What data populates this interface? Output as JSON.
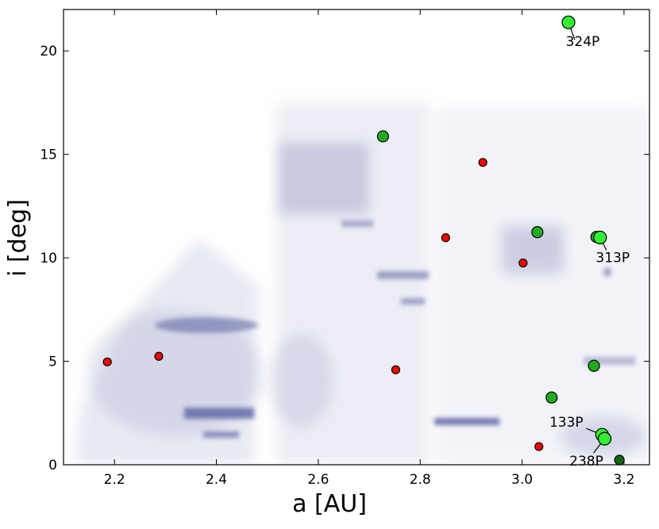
{
  "chart_data": {
    "type": "scatter",
    "xlabel": "a [AU]",
    "ylabel": "i [deg]",
    "xlim": [
      2.1,
      3.25
    ],
    "ylim": [
      0,
      22
    ],
    "xticks": [
      2.2,
      2.4,
      2.6,
      2.8,
      {
        "value": 3,
        "label": "3.0"
      },
      3.2
    ],
    "yticks": [
      0,
      5,
      10,
      15,
      20
    ],
    "series": [
      {
        "color": "#ff0000",
        "x": [
          2.186,
          2.287,
          2.752,
          2.85,
          2.923,
          3.002,
          3.033
        ],
        "values": [
          4.97,
          5.24,
          4.59,
          10.97,
          14.61,
          9.75,
          0.88
        ]
      },
      {
        "color": "#22aa22",
        "x": [
          2.727,
          3.03,
          3.146,
          3.141,
          3.058
        ],
        "values": [
          15.87,
          11.24,
          11.01,
          4.78,
          3.25
        ]
      },
      {
        "color": "#33ee33",
        "x": [
          3.091,
          3.153,
          3.157,
          3.162
        ],
        "values": [
          21.38,
          10.98,
          1.45,
          1.26
        ]
      },
      {
        "color": "#116611",
        "x": [
          3.191
        ],
        "values": [
          0.23
        ]
      }
    ],
    "annotations": [
      {
        "text": "324P",
        "x": 3.091,
        "y": 21.38
      },
      {
        "text": "313P",
        "x": 3.153,
        "y": 10.98
      },
      {
        "text": "133P",
        "x": 3.157,
        "y": 1.45
      },
      {
        "text": "238P",
        "x": 3.162,
        "y": 1.26
      }
    ]
  }
}
